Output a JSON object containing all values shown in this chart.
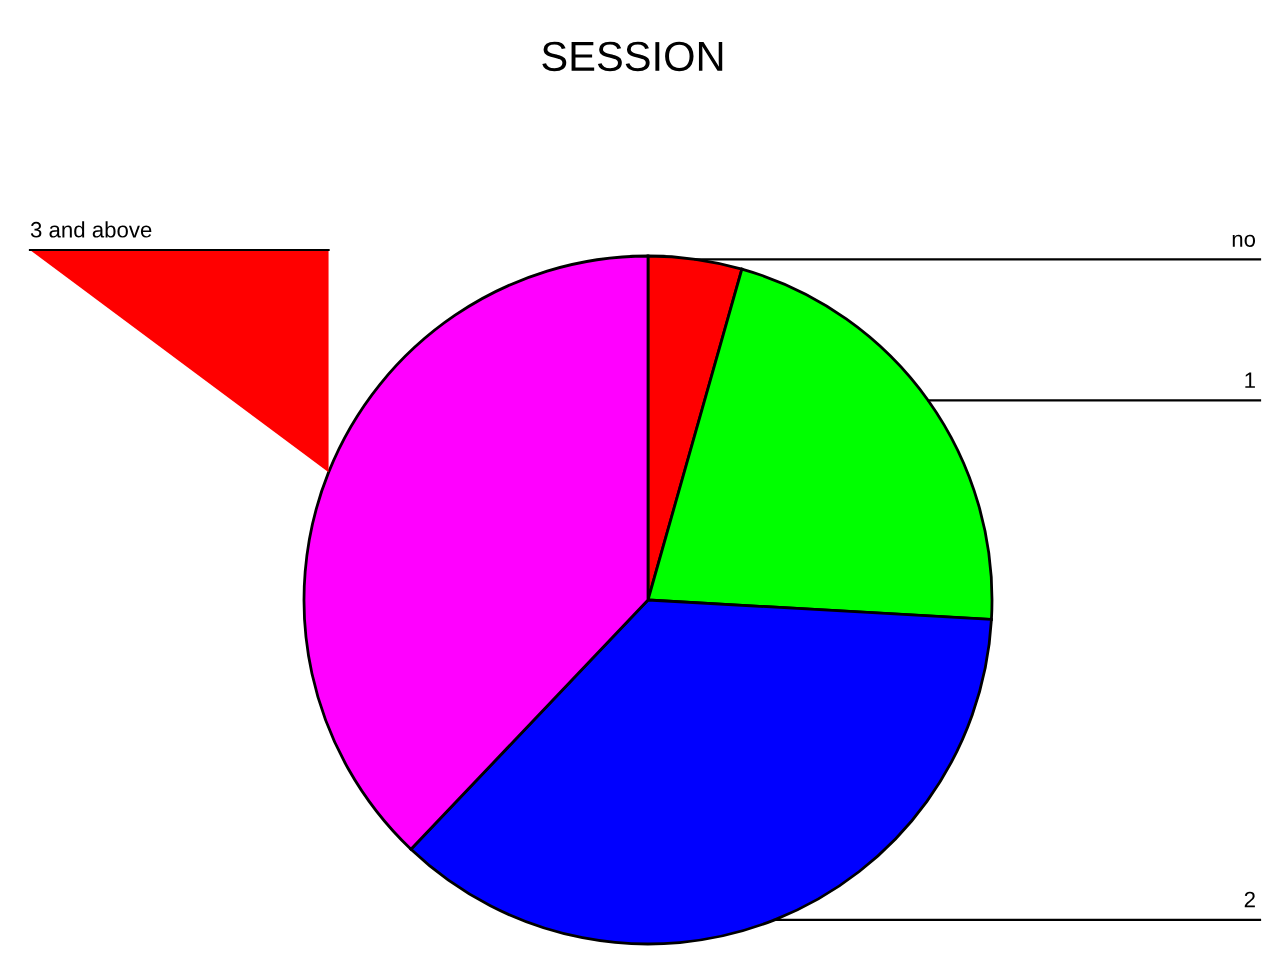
{
  "chart_data": {
    "type": "pie",
    "title": "SESSION",
    "categories": [
      "no",
      "1",
      "2",
      "3 and above"
    ],
    "values": [
      4.4,
      21.5,
      36.2,
      37.9
    ],
    "colors": [
      "#ff0000",
      "#00ff00",
      "#0000ff",
      "#ff00ff"
    ],
    "legend": false
  }
}
